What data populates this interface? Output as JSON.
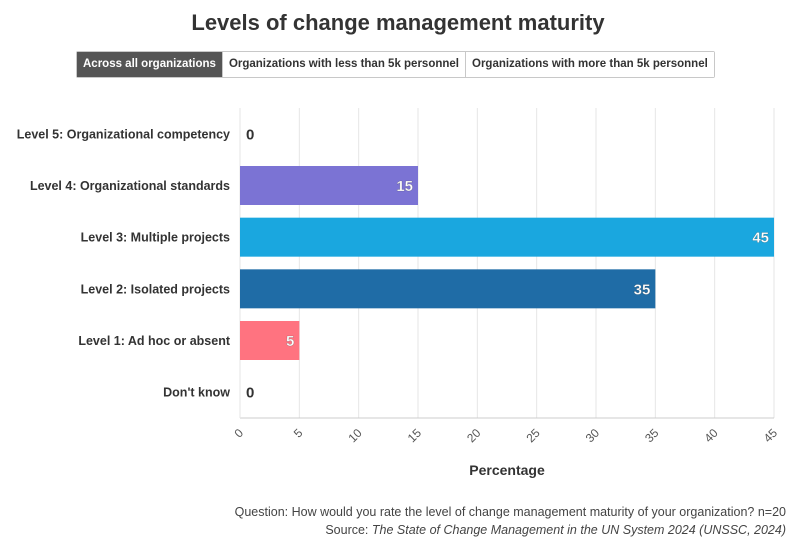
{
  "title": "Levels of change management maturity",
  "tabs": [
    {
      "label": "Across all organizations",
      "active": true
    },
    {
      "label": "Organizations with less than 5k personnel",
      "active": false
    },
    {
      "label": "Organizations with more than 5k personnel",
      "active": false
    }
  ],
  "footer": {
    "question": "Question: How would you rate the level of change management maturity of your organization? n=20",
    "source_prefix": "Source: ",
    "source_title": "The State of Change Management in the UN System 2024 (UNSSC, 2024)"
  },
  "chart_data": {
    "type": "bar",
    "orientation": "horizontal",
    "categories": [
      "Level 5: Organizational competency",
      "Level 4: Organizational standards",
      "Level 3: Multiple projects",
      "Level 2: Isolated projects",
      "Level 1: Ad hoc or absent",
      "Don't know"
    ],
    "values": [
      0,
      15,
      45,
      35,
      5,
      0
    ],
    "data_labels": [
      "0",
      "15",
      "45",
      "35",
      "5",
      "0"
    ],
    "colors": [
      "#7b73d4",
      "#7b73d4",
      "#1aa7df",
      "#1f6ca6",
      "#ff7380",
      "#7b73d4"
    ],
    "xlabel": "Percentage",
    "xlim": [
      0,
      45
    ],
    "xticks": [
      0,
      5,
      10,
      15,
      20,
      25,
      30,
      35,
      40,
      45
    ],
    "xtick_labels": [
      "0",
      "5",
      "10",
      "15",
      "20",
      "25",
      "30",
      "35",
      "40",
      "45"
    ],
    "grid": true,
    "legend": "none"
  }
}
